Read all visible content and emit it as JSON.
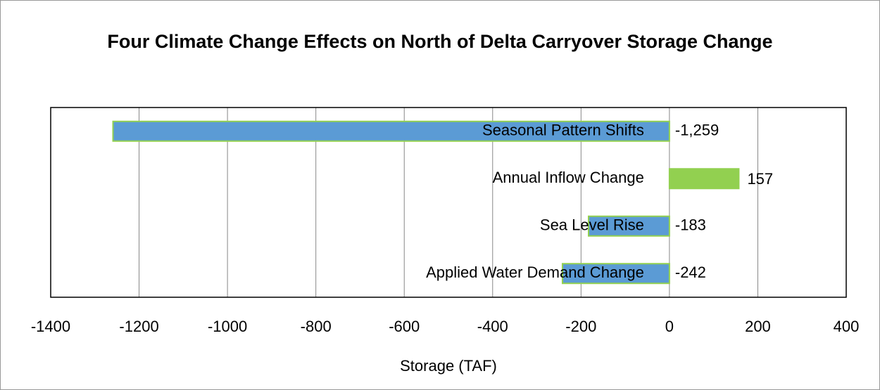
{
  "chart_data": {
    "type": "barh",
    "title": "Four Climate Change Effects on North of Delta Carryover Storage Change",
    "categories": [
      "Seasonal Pattern Shifts",
      "Annual Inflow Change",
      "Sea Level Rise",
      "Applied Water Demand Change"
    ],
    "values": [
      -1259,
      157,
      -183,
      -242
    ],
    "value_labels": [
      "-1,259",
      "157",
      "-183",
      "-242"
    ],
    "color_negative": "#5b9bd5",
    "color_positive": "#92d050",
    "edge_color": "#92d050",
    "xlabel": "Storage (TAF)",
    "xlim": [
      -1400,
      400
    ],
    "xticks": [
      -1400,
      -1200,
      -1000,
      -800,
      -600,
      -400,
      -200,
      0,
      200,
      400
    ],
    "grid": true
  }
}
